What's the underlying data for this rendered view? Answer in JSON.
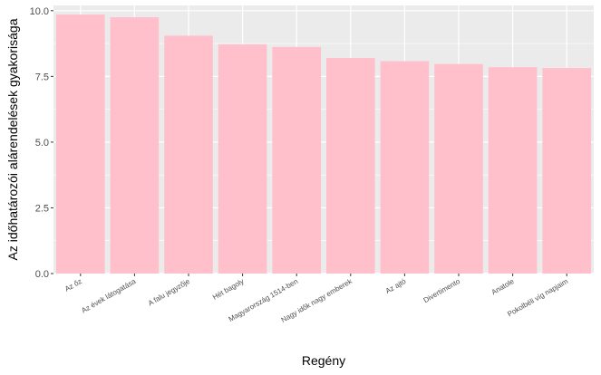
{
  "chart_data": {
    "type": "bar",
    "title": "",
    "xlabel": "Regény",
    "ylabel": "Az időhatározói alárendelések gyakorisága",
    "categories": [
      "Az őz",
      "Az évek látogatása",
      "A falu jegyzője",
      "Hét bagoly",
      "Magyarország 1514-ben",
      "Nagy idők nagy emberek",
      "Az ajtó",
      "Divertimento",
      "Anatole",
      "Pokolbéli víg napjaim"
    ],
    "values": [
      9.85,
      9.75,
      9.05,
      8.72,
      8.62,
      8.2,
      8.08,
      7.97,
      7.85,
      7.82
    ],
    "ylim": [
      0,
      10.2
    ],
    "yticks": [
      0.0,
      2.5,
      5.0,
      7.5,
      10.0
    ],
    "ytick_labels": [
      "0.0",
      "2.5",
      "5.0",
      "7.5",
      "10.0"
    ],
    "grid": true,
    "legend": "none",
    "colors": {
      "bar": "#FFC0CB",
      "panel_background": "#EBEBEB",
      "grid_major": "#FFFFFF",
      "axis_text": "#4D4D4D"
    }
  }
}
